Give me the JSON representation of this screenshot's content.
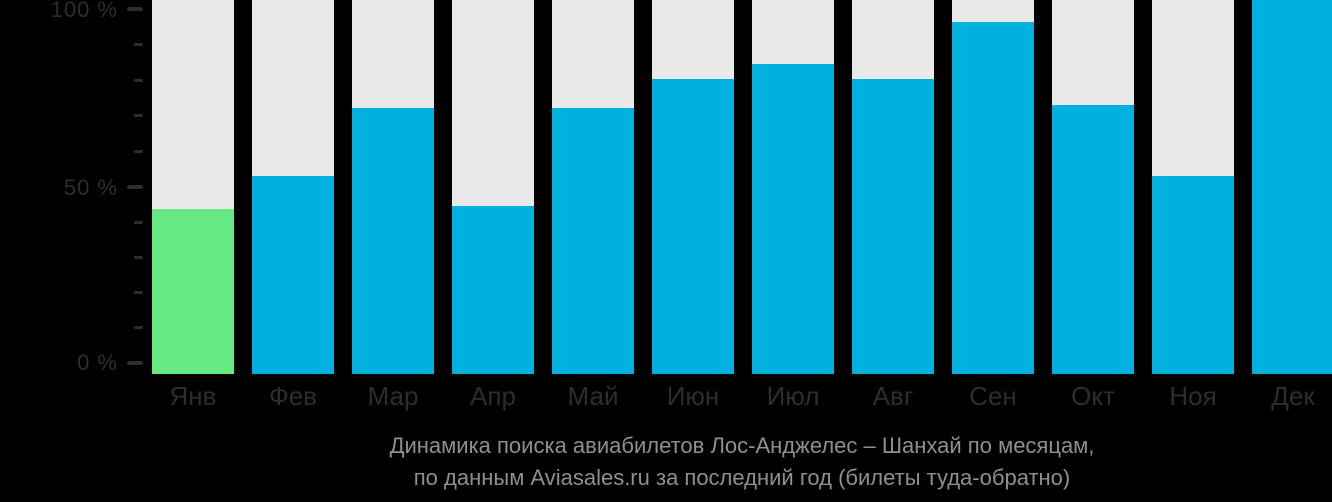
{
  "chart_data": {
    "type": "bar",
    "categories": [
      "Янв",
      "Фев",
      "Мар",
      "Апр",
      "Май",
      "Июн",
      "Июл",
      "Авг",
      "Сен",
      "Окт",
      "Ноя",
      "Дек"
    ],
    "values": [
      44,
      53,
      71,
      45,
      71,
      79,
      83,
      79,
      94,
      72,
      53,
      100
    ],
    "unit": "%",
    "ylim": [
      0,
      100
    ],
    "ytick_labels": [
      "100 %",
      "50 %",
      "0 %"
    ],
    "grid": false,
    "legend": false,
    "highlight_index": 0,
    "title": "Динамика поиска авиабилетов Лос-Анджелес – Шанхай по месяцам,",
    "subtitle": "по данным Aviasales.ru за последний год (билеты туда-обратно)",
    "colors": {
      "bar": "#00b1de",
      "highlight_bar": "#66e982",
      "track": "#e9e9e9",
      "background": "#000000",
      "axis_text": "#2d2d2d",
      "caption_text": "#8f8f8f"
    }
  }
}
